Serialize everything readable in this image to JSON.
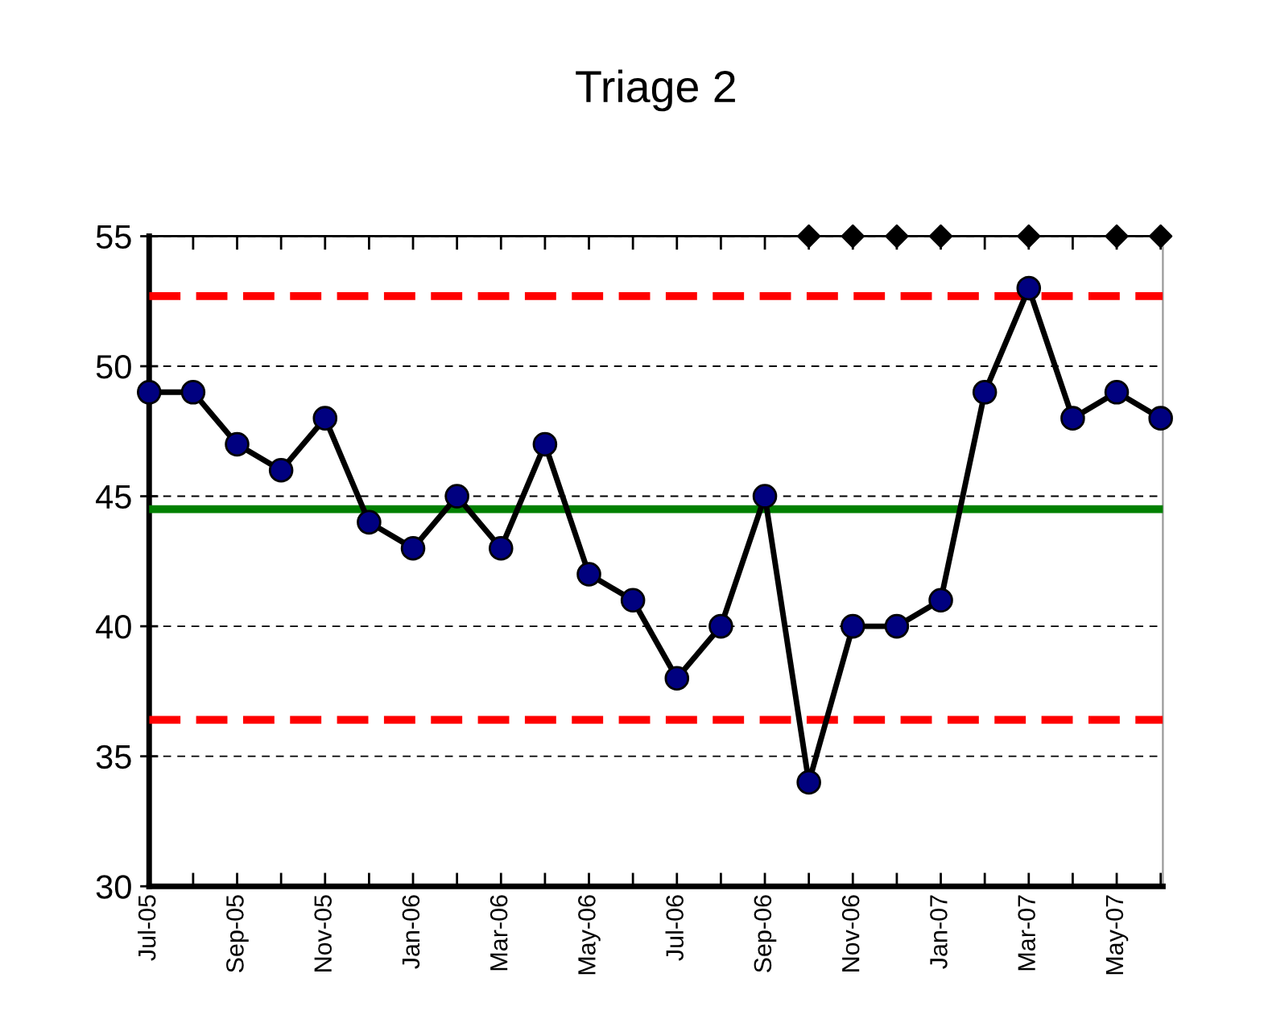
{
  "chart_data": {
    "type": "line",
    "title": "Triage 2",
    "categories": [
      "Jul-05",
      null,
      "Sep-05",
      null,
      "Nov-05",
      null,
      "Jan-06",
      null,
      "Mar-06",
      null,
      "May-06",
      null,
      "Jul-06",
      null,
      "Sep-06",
      null,
      "Nov-06",
      null,
      "Jan-07",
      null,
      "Mar-07",
      null,
      "May-07",
      null
    ],
    "series": [
      {
        "color": "#000000",
        "colors": [
          "#000080",
          "#000080",
          "#000080",
          "#000080",
          "#000080",
          "#000080",
          "#000080",
          "#000080",
          "#000080",
          "#000080",
          "#000080",
          "#000080",
          "#000080",
          "#000080",
          "#000080",
          "#000080",
          "#000080",
          "#000080",
          "#000080",
          "#000080",
          "#000080",
          "#000080",
          "#000080",
          "#000080"
        ],
        "marker": "circle",
        "values": [
          49,
          49,
          47,
          46,
          48,
          44,
          43,
          45,
          43,
          47,
          42,
          41,
          38,
          40,
          45,
          34,
          40,
          40,
          41,
          49,
          53,
          48,
          49,
          48
        ]
      },
      {
        "type": "scatter",
        "color": "#000000",
        "marker": "diamond",
        "values": [
          null,
          null,
          null,
          null,
          null,
          null,
          null,
          null,
          null,
          null,
          null,
          null,
          null,
          null,
          null,
          55,
          55,
          55,
          55,
          null,
          55,
          null,
          55,
          55
        ]
      }
    ],
    "ref_lines": [
      {
        "axis": "y",
        "value": 52.7,
        "color": "#ff0000",
        "line_style": "dashed"
      },
      {
        "axis": "y",
        "value": 44.5,
        "color": "#008000",
        "line_style": "solid"
      },
      {
        "axis": "y",
        "value": 36.4,
        "color": "#ff0000",
        "line_style": "dashed"
      }
    ],
    "ylim": [
      30,
      55
    ],
    "yticks": [
      30,
      35,
      40,
      45,
      50,
      55
    ],
    "grid": "y",
    "legend": false
  }
}
